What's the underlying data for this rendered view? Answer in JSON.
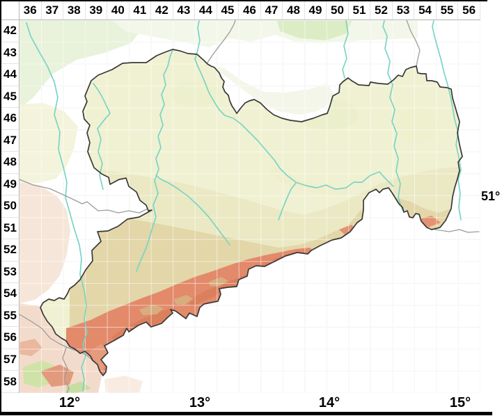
{
  "grid": {
    "columns": [
      "36",
      "37",
      "38",
      "39",
      "40",
      "41",
      "42",
      "43",
      "44",
      "45",
      "46",
      "47",
      "48",
      "49",
      "50",
      "51",
      "52",
      "53",
      "54",
      "55",
      "56"
    ],
    "rows": [
      "42",
      "43",
      "44",
      "45",
      "46",
      "47",
      "48",
      "49",
      "50",
      "51",
      "52",
      "53",
      "54",
      "55",
      "56",
      "57",
      "58"
    ]
  },
  "axis": {
    "lon_labels": [
      "12°",
      "13°",
      "14°",
      "15°"
    ],
    "lat_label": "51°"
  },
  "map": {
    "palette": {
      "saxony_base": "#f0f1d2",
      "lowland_khaki": "#eae9c4",
      "upland_tan": "#e3d6a8",
      "mountain_salmon": "#e38a6b",
      "mountain_dark": "#d97e5c",
      "river": "#79d5c3",
      "state_border": "#383838",
      "neighbor_border": "#9b9b9b",
      "grid_under": "#e9e9e9",
      "grid_over": "rgba(255,255,255,0.55)"
    }
  }
}
